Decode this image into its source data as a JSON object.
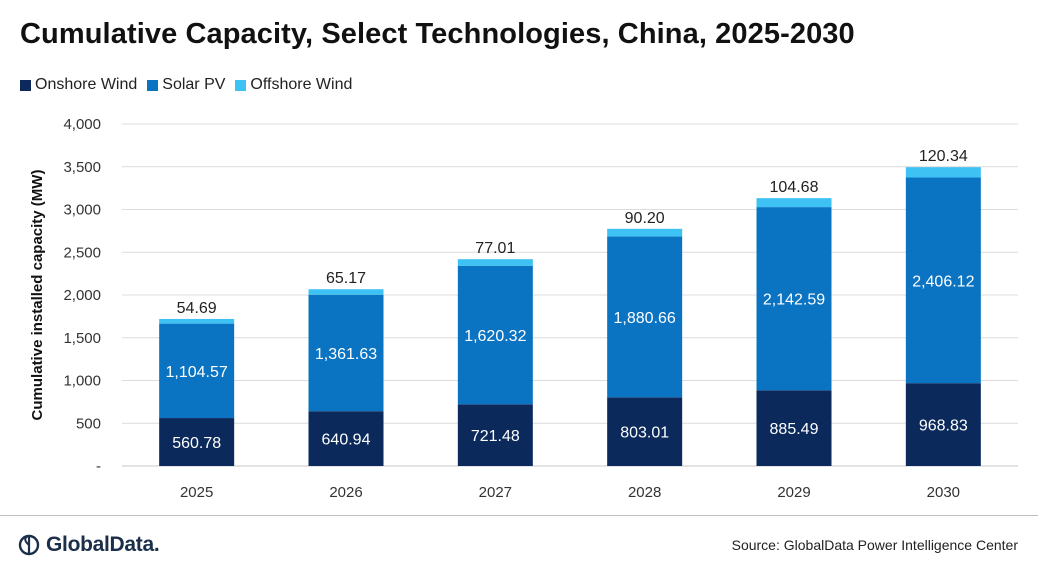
{
  "title": "Cumulative Capacity, Select Technologies, China, 2025-2030",
  "source": "Source: GlobalData Power Intelligence Center",
  "logo_text": "GlobalData.",
  "chart_data": {
    "type": "bar",
    "stacked": true,
    "title": "Cumulative Capacity, Select Technologies, China, 2025-2030",
    "xlabel": "",
    "ylabel": "Cumulative installed capacity (MW)",
    "categories": [
      "2025",
      "2026",
      "2027",
      "2028",
      "2029",
      "2030"
    ],
    "series": [
      {
        "name": "Onshore Wind",
        "color": "#0b2a5b",
        "values": [
          560.78,
          640.94,
          721.48,
          803.01,
          885.49,
          968.83
        ],
        "labels": [
          "560.78",
          "640.94",
          "721.48",
          "803.01",
          "885.49",
          "968.83"
        ]
      },
      {
        "name": "Solar PV",
        "color": "#0a73c2",
        "values": [
          1104.57,
          1361.63,
          1620.32,
          1880.66,
          2142.59,
          2406.12
        ],
        "labels": [
          "1,104.57",
          "1,361.63",
          "1,620.32",
          "1,880.66",
          "2,142.59",
          "2,406.12"
        ]
      },
      {
        "name": "Offshore Wind",
        "color": "#3ec1f3",
        "values": [
          54.69,
          65.17,
          77.01,
          90.2,
          104.68,
          120.34
        ],
        "labels": [
          "54.69",
          "65.17",
          "77.01",
          "90.20",
          "104.68",
          "120.34"
        ]
      }
    ],
    "ylim": [
      0,
      4000
    ],
    "yticks": [
      0,
      500,
      1000,
      1500,
      2000,
      2500,
      3000,
      3500,
      4000
    ],
    "ytick_labels": [
      "-",
      "500",
      "1,000",
      "1,500",
      "2,000",
      "2,500",
      "3,000",
      "3,500",
      "4,000"
    ],
    "grid": true,
    "legend_position": "top-left"
  }
}
